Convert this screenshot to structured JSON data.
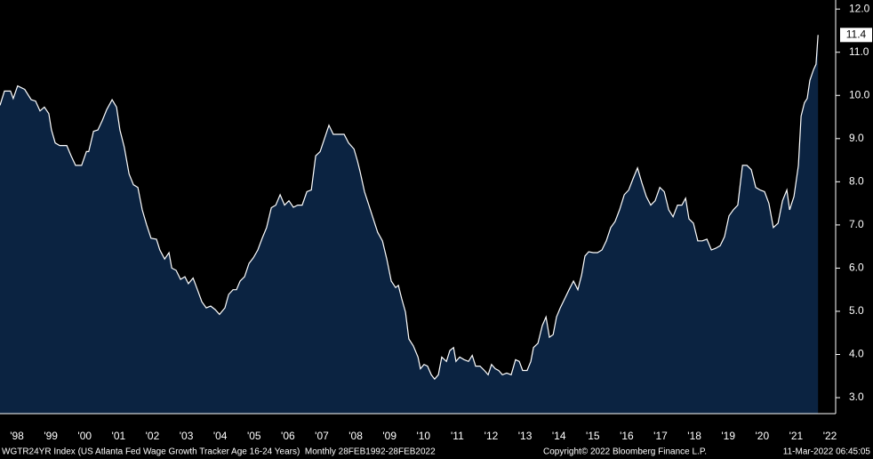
{
  "chart_data": {
    "type": "area",
    "series": [
      {
        "color": "#0b2341",
        "line_color": "#ffffff",
        "x": [
          1998.0,
          1998.13,
          1998.31,
          1998.39,
          1998.52,
          1998.73,
          1998.92,
          1999.05,
          1999.18,
          1999.31,
          1999.44,
          1999.52,
          1999.63,
          1999.76,
          1999.97,
          2000.1,
          2000.23,
          2000.41,
          2000.55,
          2000.62,
          2000.76,
          2000.89,
          2001.02,
          2001.15,
          2001.31,
          2001.44,
          2001.54,
          2001.67,
          2001.81,
          2001.94,
          2002.07,
          2002.2,
          2002.33,
          2002.46,
          2002.62,
          2002.72,
          2002.86,
          2002.99,
          2003.07,
          2003.2,
          2003.33,
          2003.46,
          2003.56,
          2003.7,
          2003.83,
          2003.96,
          2004.09,
          2004.22,
          2004.35,
          2004.48,
          2004.64,
          2004.75,
          2004.88,
          2004.98,
          2005.09,
          2005.22,
          2005.35,
          2005.48,
          2005.61,
          2005.74,
          2005.87,
          2006.01,
          2006.14,
          2006.27,
          2006.4,
          2006.53,
          2006.66,
          2006.79,
          2006.92,
          2007.06,
          2007.19,
          2007.32,
          2007.45,
          2007.58,
          2007.71,
          2007.84,
          2007.97,
          2008.16,
          2008.29,
          2008.45,
          2008.55,
          2008.63,
          2008.76,
          2008.89,
          2009.02,
          2009.15,
          2009.29,
          2009.42,
          2009.55,
          2009.68,
          2009.76,
          2009.86,
          2009.97,
          2010.07,
          2010.2,
          2010.34,
          2010.41,
          2010.52,
          2010.62,
          2010.73,
          2010.83,
          2010.94,
          2011.04,
          2011.18,
          2011.28,
          2011.39,
          2011.46,
          2011.57,
          2011.7,
          2011.83,
          2011.94,
          2012.04,
          2012.17,
          2012.3,
          2012.41,
          2012.51,
          2012.62,
          2012.72,
          2012.83,
          2012.96,
          2013.09,
          2013.22,
          2013.33,
          2013.43,
          2013.56,
          2013.67,
          2013.75,
          2013.88,
          2014.01,
          2014.12,
          2014.22,
          2014.33,
          2014.43,
          2014.54,
          2014.67,
          2014.8,
          2014.93,
          2015.06,
          2015.17,
          2015.27,
          2015.38,
          2015.51,
          2015.64,
          2015.77,
          2015.9,
          2016.03,
          2016.16,
          2016.29,
          2016.43,
          2016.56,
          2016.69,
          2016.82,
          2016.95,
          2017.08,
          2017.21,
          2017.34,
          2017.48,
          2017.61,
          2017.74,
          2017.87,
          2018.0,
          2018.13,
          2018.24,
          2018.34,
          2018.47,
          2018.6,
          2018.73,
          2018.87,
          2019.0,
          2019.13,
          2019.26,
          2019.39,
          2019.52,
          2019.65,
          2019.78,
          2019.92,
          2020.05,
          2020.18,
          2020.31,
          2020.44,
          2020.57,
          2020.7,
          2020.83,
          2020.97,
          2021.1,
          2021.23,
          2021.31,
          2021.44,
          2021.57,
          2021.65,
          2021.75,
          2021.83,
          2021.91,
          2022.02,
          2022.09,
          2022.15
        ],
        "values": [
          9.77,
          10.1,
          10.1,
          9.93,
          10.22,
          10.14,
          9.9,
          9.87,
          9.64,
          9.73,
          9.58,
          9.2,
          8.9,
          8.84,
          8.84,
          8.6,
          8.38,
          8.38,
          8.7,
          8.7,
          9.17,
          9.2,
          9.42,
          9.67,
          9.9,
          9.73,
          9.2,
          8.8,
          8.18,
          7.93,
          7.87,
          7.35,
          7.0,
          6.69,
          6.67,
          6.42,
          6.21,
          6.36,
          6.0,
          5.95,
          5.74,
          5.8,
          5.64,
          5.77,
          5.5,
          5.22,
          5.08,
          5.12,
          5.04,
          4.93,
          5.08,
          5.39,
          5.5,
          5.5,
          5.7,
          5.8,
          6.11,
          6.24,
          6.42,
          6.69,
          6.94,
          7.4,
          7.46,
          7.7,
          7.46,
          7.56,
          7.41,
          7.46,
          7.46,
          7.77,
          7.81,
          8.6,
          8.7,
          9.0,
          9.31,
          9.1,
          9.1,
          9.1,
          8.9,
          8.76,
          8.49,
          8.24,
          7.77,
          7.46,
          7.14,
          6.83,
          6.63,
          6.21,
          5.7,
          5.55,
          5.6,
          5.29,
          4.98,
          4.36,
          4.2,
          3.94,
          3.67,
          3.77,
          3.73,
          3.53,
          3.43,
          3.53,
          3.94,
          3.84,
          4.09,
          4.16,
          3.84,
          3.94,
          3.88,
          3.84,
          3.98,
          3.73,
          3.73,
          3.63,
          3.53,
          3.77,
          3.67,
          3.63,
          3.53,
          3.57,
          3.53,
          3.88,
          3.84,
          3.63,
          3.63,
          3.84,
          4.16,
          4.26,
          4.67,
          4.87,
          4.4,
          4.46,
          4.87,
          5.08,
          5.29,
          5.5,
          5.7,
          5.5,
          5.84,
          6.28,
          6.38,
          6.36,
          6.36,
          6.42,
          6.63,
          6.94,
          7.08,
          7.35,
          7.7,
          7.81,
          8.07,
          8.32,
          7.97,
          7.66,
          7.46,
          7.56,
          7.87,
          7.77,
          7.35,
          7.19,
          7.46,
          7.46,
          7.62,
          7.14,
          7.04,
          6.63,
          6.63,
          6.67,
          6.42,
          6.46,
          6.52,
          6.73,
          7.21,
          7.35,
          7.46,
          8.38,
          8.38,
          8.28,
          7.87,
          7.81,
          7.77,
          7.5,
          6.94,
          7.04,
          7.56,
          7.81,
          7.35,
          7.66,
          8.38,
          9.52,
          9.83,
          9.93,
          10.35,
          10.6,
          10.72,
          11.4
        ]
      }
    ],
    "xlim": [
      1998,
      2022.67
    ],
    "xticks": [
      {
        "value": 1998.5,
        "label": "'98"
      },
      {
        "value": 1999.5,
        "label": "'99"
      },
      {
        "value": 2000.5,
        "label": "'00"
      },
      {
        "value": 2001.5,
        "label": "'01"
      },
      {
        "value": 2002.5,
        "label": "'02"
      },
      {
        "value": 2003.5,
        "label": "'03"
      },
      {
        "value": 2004.5,
        "label": "'04"
      },
      {
        "value": 2005.5,
        "label": "'05"
      },
      {
        "value": 2006.5,
        "label": "'06"
      },
      {
        "value": 2007.5,
        "label": "'07"
      },
      {
        "value": 2008.5,
        "label": "'08"
      },
      {
        "value": 2009.5,
        "label": "'09"
      },
      {
        "value": 2010.5,
        "label": "'10"
      },
      {
        "value": 2011.5,
        "label": "'11"
      },
      {
        "value": 2012.5,
        "label": "'12"
      },
      {
        "value": 2013.5,
        "label": "'13"
      },
      {
        "value": 2014.5,
        "label": "'14"
      },
      {
        "value": 2015.5,
        "label": "'15"
      },
      {
        "value": 2016.5,
        "label": "'16"
      },
      {
        "value": 2017.5,
        "label": "'17"
      },
      {
        "value": 2018.5,
        "label": "'18"
      },
      {
        "value": 2019.5,
        "label": "'19"
      },
      {
        "value": 2020.5,
        "label": "'20"
      },
      {
        "value": 2021.5,
        "label": "'21"
      },
      {
        "value": 2022.5,
        "label": "'22"
      }
    ],
    "ylim": [
      2.63,
      12.21
    ],
    "yticks": [
      {
        "value": 3,
        "label": "3.0"
      },
      {
        "value": 4,
        "label": "4.0"
      },
      {
        "value": 5,
        "label": "5.0"
      },
      {
        "value": 6,
        "label": "6.0"
      },
      {
        "value": 7,
        "label": "7.0"
      },
      {
        "value": 8,
        "label": "8.0"
      },
      {
        "value": 9,
        "label": "9.0"
      },
      {
        "value": 10,
        "label": "10.0"
      },
      {
        "value": 11,
        "label": "11.0"
      },
      {
        "value": 12,
        "label": "12.0"
      }
    ],
    "footer_left": "WGTR24YR Index (US Atlanta Fed Wage Growth Tracker Age 16-24 Years)  Monthly 28FEB1992-28FEB2022",
    "footer_center": "Copyright© 2022 Bloomberg Finance L.P.",
    "footer_right": "11-Mar-2022 06:45:05"
  }
}
